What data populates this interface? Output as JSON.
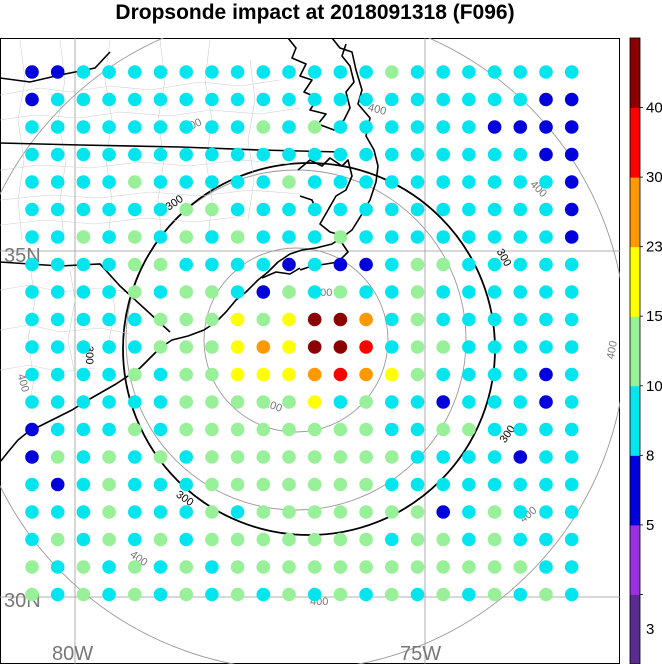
{
  "title": "Dropsonde impact at 2018091318 (F096)",
  "lat_labels": [
    "35N",
    "30N"
  ],
  "lon_labels": [
    "80W",
    "75W"
  ],
  "colorbar": {
    "colors": [
      "#5b2c8f",
      "#9b30e0",
      "#0000dd",
      "#00e5ee",
      "#98f098",
      "#ffff00",
      "#ff9900",
      "#ff0000",
      "#8b0000"
    ],
    "tick_labels": [
      "3",
      "5",
      "8",
      "10",
      "15",
      "23",
      "30",
      "40"
    ]
  },
  "range_rings": {
    "thin_labels": [
      "100",
      "100",
      "400",
      "400",
      "400",
      "400",
      "400",
      "400",
      "400"
    ],
    "bold_labels": [
      "300",
      "300",
      "300",
      "300",
      "300"
    ]
  },
  "chart_data": {
    "type": "scatter",
    "legend_colors": {
      "B": "#0000dd",
      "C": "#00e5ee",
      "G": "#98f098",
      "Y": "#ffff00",
      "O": "#ff9900",
      "R": "#ff0000",
      "D": "#8b0000"
    },
    "grid_rows": [
      "BBCCCCCCCCCCCCGCCCCCCC",
      "BCCCCCCCCCCCCCCCCCCCBB",
      "CCCCCCCCCGCGCCCCCCBBBB",
      "CCCCCCCCCCCCCCCCCCCCBB",
      "CCCCGCCCCCGCCCCCCCCCCB",
      "CCCCCCGGCCCCCCCCCCCCCB",
      "CCGCGCGCGCCCGCCCCCCCCB",
      "CCCCGGCCCCBCBBCGGCCCCC",
      "CCCCGCGGCBGCGCCGCCCCCC",
      "CCCCCGGGYGYDDOCGCCCCCC",
      "CCCCCGGGYOYDDRCGGCCCCC",
      "CCCCGCGGYYYOROYGCCCCBC",
      "CCCCCCGGGGGYCGCCBCCCBC",
      "BCCCGCGGGGGGGGCCGGCCCC",
      "BGCGCGCGGGGGGGGCCCCBCC",
      "CBCGCCCGGGGGGGCCCCCCCC",
      "CCCGCCCGCGGGGGGGBCGCCC",
      "CGCGCGCGGGGGGGCGGCGCCC",
      "GCGCGCGCGGGGGGGGGGGGCC",
      "GCGCGCGCGCGCGCGCGCGCGC"
    ]
  }
}
